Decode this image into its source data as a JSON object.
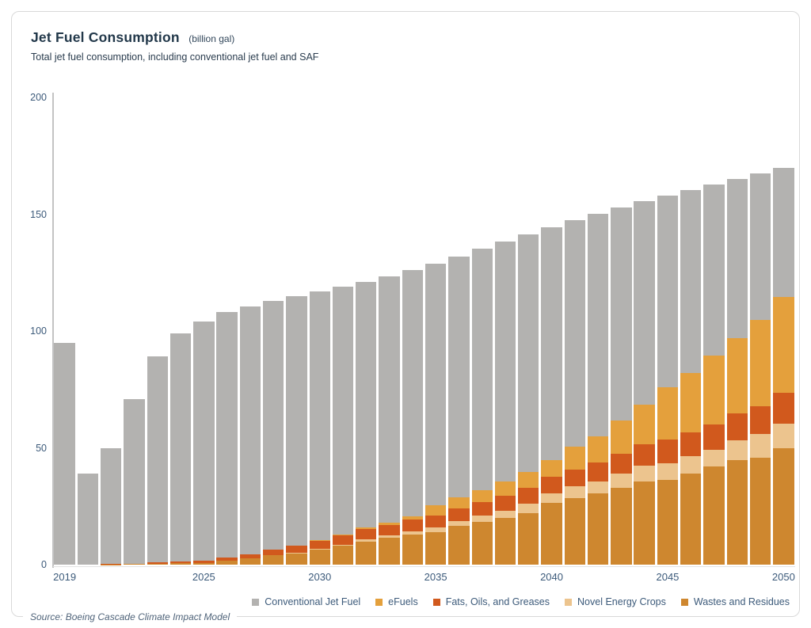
{
  "header": {
    "title": "Jet Fuel Consumption",
    "unit": "(billion gal)",
    "subtitle": "Total jet fuel consumption, including conventional jet fuel and SAF"
  },
  "footer": {
    "source": "Source: Boeing Cascade Climate Impact Model"
  },
  "chart_data": {
    "type": "bar",
    "stacked": true,
    "title": "Jet Fuel Consumption (billion gal)",
    "subtitle": "Total jet fuel consumption, including conventional jet fuel and SAF",
    "xlabel": "",
    "ylabel": "",
    "ylim": [
      0,
      200
    ],
    "y_ticks": [
      0,
      50,
      100,
      150,
      200
    ],
    "grid": false,
    "legend_position": "bottom-right",
    "categories": [
      2019,
      2020,
      2021,
      2022,
      2023,
      2024,
      2025,
      2026,
      2027,
      2028,
      2029,
      2030,
      2031,
      2032,
      2033,
      2034,
      2035,
      2036,
      2037,
      2038,
      2039,
      2040,
      2041,
      2042,
      2043,
      2044,
      2045,
      2046,
      2047,
      2048,
      2049,
      2050
    ],
    "x_ticks": [
      {
        "index": 0,
        "label": "2019"
      },
      {
        "index": 6,
        "label": "2025"
      },
      {
        "index": 11,
        "label": "2030"
      },
      {
        "index": 16,
        "label": "2035"
      },
      {
        "index": 21,
        "label": "2040"
      },
      {
        "index": 26,
        "label": "2045"
      },
      {
        "index": 31,
        "label": "2050"
      }
    ],
    "stack_order": "bottom-to-top",
    "series": [
      {
        "name": "Wastes and Residues",
        "color": "#ce872f",
        "values": [
          0,
          0,
          0.1,
          0.2,
          0.4,
          0.6,
          0.8,
          1.6,
          2.7,
          4.0,
          4.8,
          6.4,
          8.0,
          10.0,
          11.5,
          13.0,
          14.0,
          16.5,
          18.2,
          19.9,
          22.1,
          26.3,
          28.4,
          30.4,
          32.9,
          35.7,
          36.3,
          39.1,
          41.9,
          44.7,
          45.8,
          50.0
        ]
      },
      {
        "name": "Novel Energy Crops",
        "color": "#ecc48e",
        "values": [
          0,
          0,
          0,
          0,
          0,
          0,
          0,
          0,
          0,
          0,
          0.2,
          0.3,
          0.5,
          0.8,
          1.0,
          1.3,
          1.9,
          2.2,
          2.8,
          3.2,
          4.0,
          4.3,
          5.0,
          5.3,
          6.2,
          6.8,
          7.2,
          7.3,
          7.4,
          8.5,
          10.0,
          10.5
        ]
      },
      {
        "name": "Fats, Oils, and Greases",
        "color": "#d1591d",
        "values": [
          0,
          0,
          0.1,
          0.2,
          0.5,
          0.6,
          1.0,
          1.3,
          1.7,
          2.3,
          3.0,
          3.6,
          4.0,
          4.3,
          4.6,
          4.9,
          5.1,
          5.4,
          5.7,
          6.4,
          6.8,
          7.0,
          7.4,
          7.9,
          8.5,
          9.0,
          10.2,
          10.2,
          10.7,
          11.5,
          12.0,
          13.0
        ]
      },
      {
        "name": "eFuels",
        "color": "#e4a03c",
        "values": [
          0,
          0,
          0,
          0,
          0,
          0,
          0,
          0,
          0,
          0,
          0.2,
          0.3,
          0.5,
          0.7,
          1.0,
          1.5,
          4.3,
          4.8,
          5.1,
          6.2,
          6.8,
          7.0,
          9.6,
          11.3,
          14.1,
          17.0,
          22.1,
          25.4,
          29.4,
          32.2,
          37.0,
          41.0
        ]
      },
      {
        "name": "Conventional Jet Fuel",
        "color": "#b3b2b0",
        "values": [
          95.0,
          39.0,
          49.8,
          70.6,
          88.1,
          97.8,
          102.2,
          105.1,
          106.1,
          106.7,
          106.8,
          106.4,
          106.0,
          105.2,
          105.3,
          105.3,
          103.7,
          103.1,
          103.5,
          102.6,
          101.7,
          99.8,
          97.1,
          95.3,
          91.2,
          87.1,
          82.2,
          78.3,
          73.3,
          68.2,
          62.7,
          55.3
        ]
      }
    ],
    "legend": [
      {
        "label": "Conventional Jet Fuel",
        "color": "#b3b2b0"
      },
      {
        "label": "eFuels",
        "color": "#e4a03c"
      },
      {
        "label": "Fats, Oils, and Greases",
        "color": "#d1591d"
      },
      {
        "label": "Novel Energy Crops",
        "color": "#ecc48e"
      },
      {
        "label": "Wastes and Residues",
        "color": "#ce872f"
      }
    ]
  }
}
